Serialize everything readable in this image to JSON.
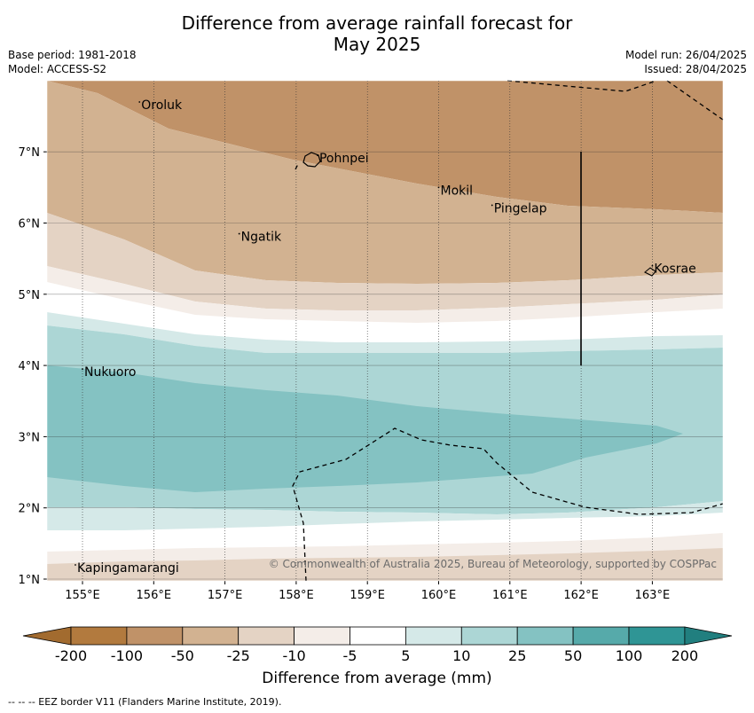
{
  "title_line1": "Difference from average rainfall forecast for",
  "title_line2": "May 2025",
  "meta_left": [
    "Base period: 1981-2018",
    "Model: ACCESS-S2"
  ],
  "meta_right": [
    "Model run: 26/04/2025",
    "Issued: 28/04/2025"
  ],
  "map": {
    "lon_ticks": [
      155,
      156,
      157,
      158,
      159,
      160,
      161,
      162,
      163
    ],
    "lon_labels": [
      "155°E",
      "156°E",
      "157°E",
      "158°E",
      "159°E",
      "160°E",
      "161°E",
      "162°E",
      "163°E"
    ],
    "lat_ticks": [
      1,
      2,
      3,
      4,
      5,
      6,
      7
    ],
    "lat_labels": [
      "1°N",
      "2°N",
      "3°N",
      "4°N",
      "5°N",
      "6°N",
      "7°N"
    ],
    "places": [
      {
        "name": "Oroluk",
        "lon": 155.8,
        "lat": 7.6
      },
      {
        "name": "Pohnpei",
        "lon": 158.3,
        "lat": 6.85
      },
      {
        "name": "Mokil",
        "lon": 160.0,
        "lat": 6.4
      },
      {
        "name": "Pingelap",
        "lon": 160.75,
        "lat": 6.15
      },
      {
        "name": "Ngatik",
        "lon": 157.2,
        "lat": 5.75
      },
      {
        "name": "Kosrae",
        "lon": 163.0,
        "lat": 5.3
      },
      {
        "name": "Nukuoro",
        "lon": 155.0,
        "lat": 3.85
      },
      {
        "name": "Kapingamarangi",
        "lon": 154.9,
        "lat": 1.1
      }
    ],
    "copyright": "© Commonwealth of Australia 2025, Bureau of Meteorology, supported by COSPPac"
  },
  "colorbar": {
    "labels": [
      "-200",
      "-100",
      "-50",
      "-25",
      "-10",
      "-5",
      "5",
      "10",
      "25",
      "50",
      "100",
      "200"
    ],
    "colors": [
      "#a26b2f",
      "#b27a3e",
      "#c09268",
      "#d2b291",
      "#e4d3c4",
      "#f4ede8",
      "#ffffff",
      "#d5e9e8",
      "#acd6d5",
      "#84c2c2",
      "#56aaaa",
      "#2f9595",
      "#217f7f"
    ],
    "label": "Difference from average (mm)"
  },
  "footnote": "--  --  -- EEZ border V11 (Flanders Marine Institute, 2019)."
}
